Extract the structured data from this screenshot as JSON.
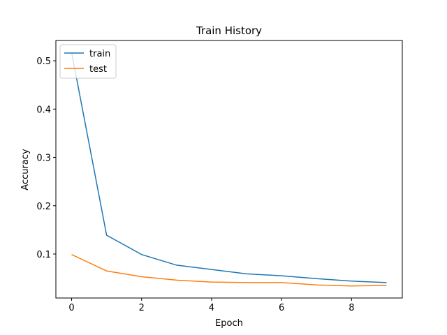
{
  "chart_data": {
    "type": "line",
    "title": "Train History",
    "x_label": "Epoch",
    "y_label": "Accuracy",
    "x": [
      0,
      1,
      2,
      3,
      4,
      5,
      6,
      7,
      8,
      9
    ],
    "series": [
      {
        "name": "train",
        "color": "#1f77b4",
        "values": [
          0.517,
          0.139,
          0.099,
          0.077,
          0.068,
          0.059,
          0.055,
          0.049,
          0.044,
          0.041
        ]
      },
      {
        "name": "test",
        "color": "#ff7f0e",
        "values": [
          0.099,
          0.065,
          0.053,
          0.046,
          0.042,
          0.041,
          0.041,
          0.036,
          0.034,
          0.035
        ]
      }
    ],
    "xlim": [
      -0.45,
      9.45
    ],
    "ylim": [
      0.009,
      0.542
    ],
    "xticks": [
      0,
      2,
      4,
      6,
      8
    ],
    "yticks": [
      0.1,
      0.2,
      0.3,
      0.4,
      0.5
    ],
    "legend": "upper left"
  }
}
